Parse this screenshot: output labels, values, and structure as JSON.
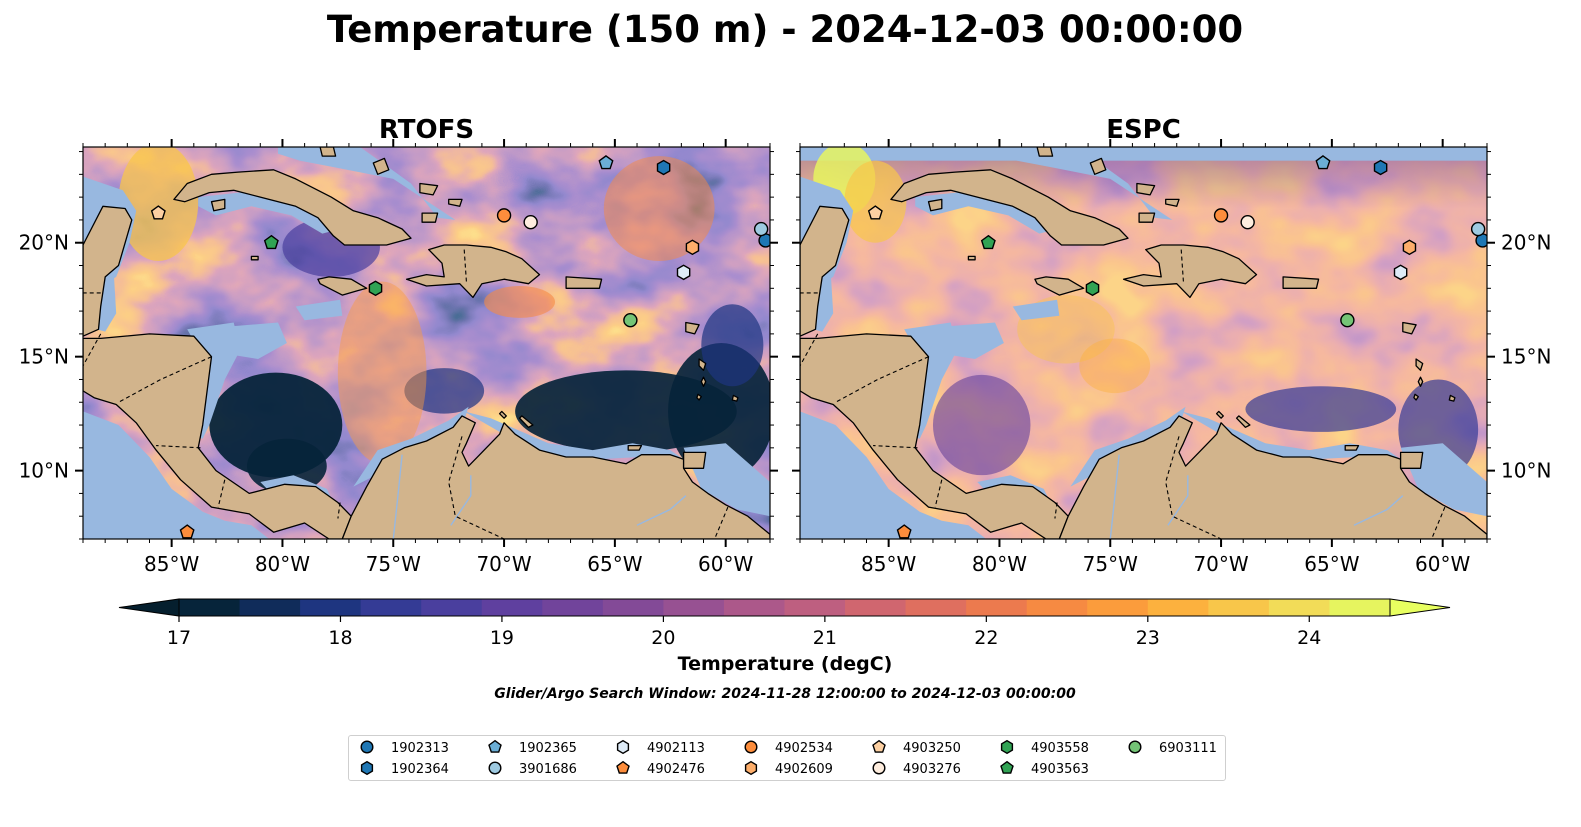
{
  "title": "Temperature (150 m) - 2024-12-03 00:00:00",
  "panels": [
    {
      "name": "RTOFS",
      "variant": "rtofs"
    },
    {
      "name": "ESPC",
      "variant": "espc"
    }
  ],
  "axes": {
    "lon_range": [
      -89,
      -58
    ],
    "lat_range": [
      7,
      24.2
    ],
    "lon_ticks": [
      -85,
      -80,
      -75,
      -70,
      -65,
      -60
    ],
    "lon_tick_labels": [
      "85°W",
      "80°W",
      "75°W",
      "70°W",
      "65°W",
      "60°W"
    ],
    "lat_ticks": [
      10,
      15,
      20
    ],
    "lat_tick_labels": [
      "10°N",
      "15°N",
      "20°N"
    ]
  },
  "colorbar": {
    "label": "Temperature (degC)",
    "range": [
      17,
      24.5
    ],
    "ticks": [
      17,
      18,
      19,
      20,
      21,
      22,
      23,
      24
    ],
    "tick_labels": [
      "17",
      "18",
      "19",
      "20",
      "21",
      "22",
      "23",
      "24"
    ],
    "colors": [
      "#06243a",
      "#102c5a",
      "#1e3580",
      "#343b95",
      "#4a3f9e",
      "#5f409f",
      "#71449b",
      "#834a97",
      "#975192",
      "#ac588a",
      "#be5f80",
      "#d0666f",
      "#df6f5f",
      "#ec7a4e",
      "#f68a42",
      "#fb9c3c",
      "#fcb13e",
      "#f8c64a",
      "#f2dc58",
      "#e6f45f"
    ],
    "under_color": "#051f2e",
    "over_color": "#e8ff60"
  },
  "colors": {
    "land": "#d2b48c",
    "shelf": "#98b8e0",
    "deep": "#06243a",
    "coast": "#000000",
    "river": "#98b8e0"
  },
  "caption": "Glider/Argo Search Window: 2024-11-28 12:00:00 to 2024-12-03 00:00:00",
  "floats": [
    {
      "id": "1902313",
      "marker": "circle",
      "color": "#1f77b4",
      "lon": -58.2,
      "lat": 20.1
    },
    {
      "id": "1902364",
      "marker": "hexagon",
      "color": "#1f77b4",
      "lon": -62.8,
      "lat": 23.3
    },
    {
      "id": "1902365",
      "marker": "pentagon",
      "color": "#6baed6",
      "lon": -65.4,
      "lat": 23.5
    },
    {
      "id": "3901686",
      "marker": "circle",
      "color": "#9ecae1",
      "lon": -58.4,
      "lat": 20.6
    },
    {
      "id": "4902113",
      "marker": "hexagon",
      "color": "#deebf7",
      "lon": -61.9,
      "lat": 18.7
    },
    {
      "id": "4902476",
      "marker": "pentagon",
      "color": "#fd8d3c",
      "lon": -84.3,
      "lat": 7.3
    },
    {
      "id": "4902534",
      "marker": "circle",
      "color": "#fd8d3c",
      "lon": -70.0,
      "lat": 21.2
    },
    {
      "id": "4902609",
      "marker": "hexagon",
      "color": "#fdae6b",
      "lon": -61.5,
      "lat": 19.8
    },
    {
      "id": "4903250",
      "marker": "pentagon",
      "color": "#fdd0a2",
      "lon": -85.6,
      "lat": 21.3
    },
    {
      "id": "4903276",
      "marker": "circle",
      "color": "#feedde",
      "lon": -68.8,
      "lat": 20.9
    },
    {
      "id": "4903558",
      "marker": "hexagon",
      "color": "#31a354",
      "lon": -75.8,
      "lat": 18.0
    },
    {
      "id": "4903563",
      "marker": "pentagon",
      "color": "#31a354",
      "lon": -80.5,
      "lat": 20.0
    },
    {
      "id": "6903111",
      "marker": "circle",
      "color": "#74c476",
      "lon": -64.3,
      "lat": 16.6
    }
  ]
}
